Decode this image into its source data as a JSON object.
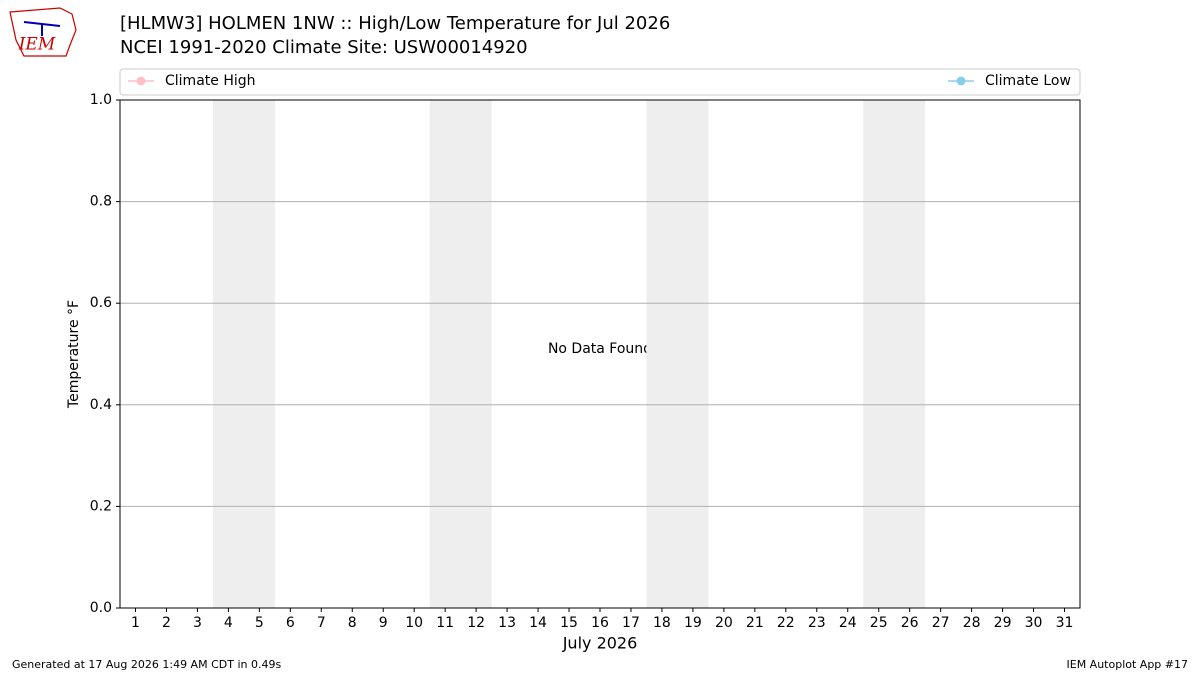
{
  "logo": {
    "text": "IEM"
  },
  "chart_data": {
    "type": "line",
    "title": "[HLMW3] HOLMEN 1NW :: High/Low Temperature for Jul 2026",
    "subtitle": "NCEI 1991-2020 Climate Site: USW00014920",
    "x_label": "July 2026",
    "y_label": "Temperature °F",
    "annotation": "No Data Found",
    "x": [
      1,
      2,
      3,
      4,
      5,
      6,
      7,
      8,
      9,
      10,
      11,
      12,
      13,
      14,
      15,
      16,
      17,
      18,
      19,
      20,
      21,
      22,
      23,
      24,
      25,
      26,
      27,
      28,
      29,
      30,
      31
    ],
    "series": [
      {
        "name": "Climate High",
        "color": "#ffc0cb",
        "values": [
          null,
          null,
          null,
          null,
          null,
          null,
          null,
          null,
          null,
          null,
          null,
          null,
          null,
          null,
          null,
          null,
          null,
          null,
          null,
          null,
          null,
          null,
          null,
          null,
          null,
          null,
          null,
          null,
          null,
          null,
          null
        ]
      },
      {
        "name": "Climate Low",
        "color": "#87ceeb",
        "values": [
          null,
          null,
          null,
          null,
          null,
          null,
          null,
          null,
          null,
          null,
          null,
          null,
          null,
          null,
          null,
          null,
          null,
          null,
          null,
          null,
          null,
          null,
          null,
          null,
          null,
          null,
          null,
          null,
          null,
          null,
          null
        ]
      }
    ],
    "shaded_days": [
      [
        4,
        5
      ],
      [
        11,
        12
      ],
      [
        18,
        19
      ],
      [
        25,
        26
      ]
    ],
    "shade_color": "#eeeeee",
    "xlim": [
      0.5,
      31.5
    ],
    "xticks": [
      1,
      2,
      3,
      4,
      5,
      6,
      7,
      8,
      9,
      10,
      11,
      12,
      13,
      14,
      15,
      16,
      17,
      18,
      19,
      20,
      21,
      22,
      23,
      24,
      25,
      26,
      27,
      28,
      29,
      30,
      31
    ],
    "ylim": [
      0,
      1
    ],
    "yticks": [
      {
        "value": 0,
        "label": "0.0"
      },
      0.2,
      0.4,
      0.6,
      0.8,
      {
        "value": 1,
        "label": "1.0"
      }
    ],
    "grid": true
  },
  "footer": {
    "left": "Generated at 17 Aug 2026 1:49 AM CDT in 0.49s",
    "right": "IEM Autoplot App #17"
  }
}
